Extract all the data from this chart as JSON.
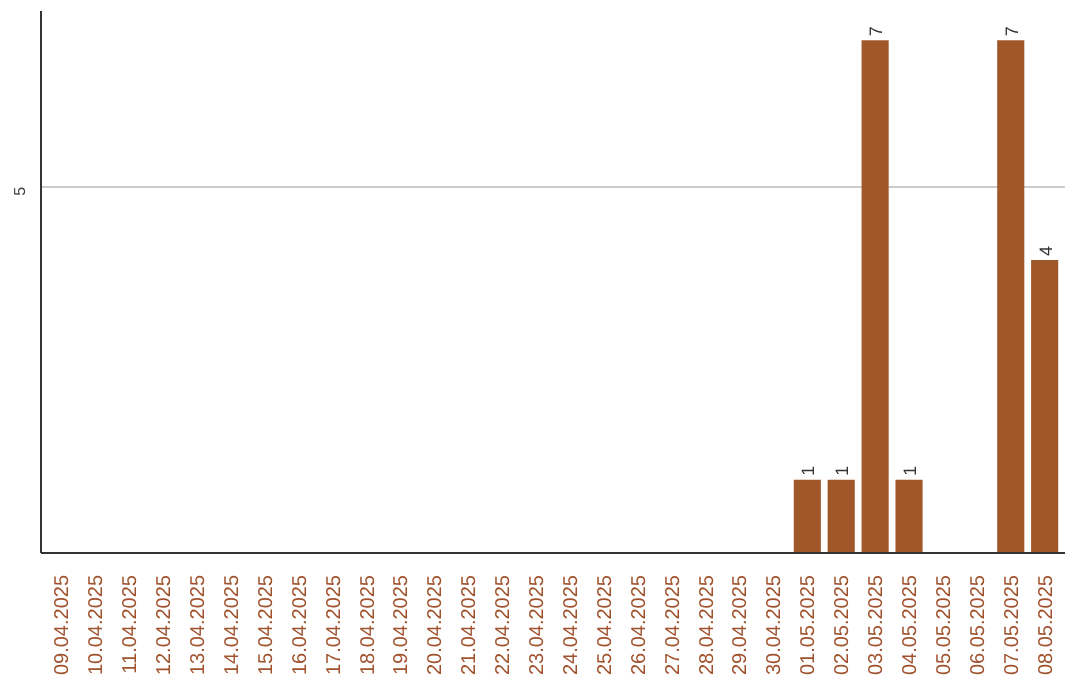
{
  "chart_data": {
    "type": "bar",
    "categories": [
      "09.04.2025",
      "10.04.2025",
      "11.04.2025",
      "12.04.2025",
      "13.04.2025",
      "14.04.2025",
      "15.04.2025",
      "16.04.2025",
      "17.04.2025",
      "18.04.2025",
      "19.04.2025",
      "20.04.2025",
      "21.04.2025",
      "22.04.2025",
      "23.04.2025",
      "24.04.2025",
      "25.04.2025",
      "26.04.2025",
      "27.04.2025",
      "28.04.2025",
      "29.04.2025",
      "30.04.2025",
      "01.05.2025",
      "02.05.2025",
      "03.05.2025",
      "04.05.2025",
      "05.05.2025",
      "06.05.2025",
      "07.05.2025",
      "08.05.2025"
    ],
    "values": [
      null,
      null,
      null,
      null,
      null,
      null,
      null,
      null,
      null,
      null,
      null,
      null,
      null,
      null,
      null,
      null,
      null,
      null,
      null,
      null,
      null,
      null,
      1,
      1,
      7,
      1,
      null,
      null,
      7,
      4
    ],
    "data_labels": true,
    "color": "#a0582a",
    "ylim": [
      0,
      7.4
    ],
    "yticks": [
      5
    ],
    "grid": "y"
  }
}
